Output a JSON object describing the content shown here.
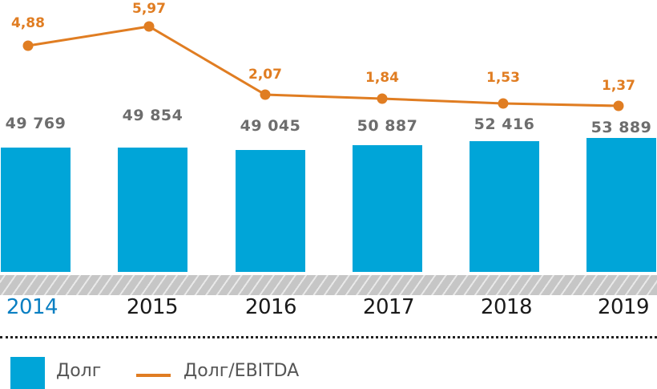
{
  "chart_data": {
    "type": "bar",
    "title": "",
    "xlabel": "",
    "ylabel": "",
    "categories": [
      "2014",
      "2015",
      "2016",
      "2017",
      "2018",
      "2019"
    ],
    "series": [
      {
        "name": "Долг",
        "type": "bar",
        "color": "#00a5d8",
        "values": [
          49769,
          49854,
          49045,
          50887,
          52416,
          53889
        ],
        "labels": [
          "49 769",
          "49 854",
          "49 045",
          "50 887",
          "52 416",
          "53 889"
        ]
      },
      {
        "name": "Долг/EBITDA",
        "type": "line",
        "color": "#e07d22",
        "values": [
          4.88,
          5.97,
          2.07,
          1.84,
          1.53,
          1.37
        ],
        "labels": [
          "4,88",
          "5,97",
          "2,07",
          "1,84",
          "1,53",
          "1,37"
        ]
      }
    ],
    "highlighted_category": "2014",
    "grid": false,
    "legend_position": "bottom-left"
  },
  "legend": {
    "bar_label": "Долг",
    "line_label": "Долг/EBITDA"
  },
  "colors": {
    "bar": "#00a5d8",
    "line": "#e07d22",
    "value_text": "#6d6d6d",
    "year_active": "#0a7fc2",
    "year": "#1a1a1a"
  }
}
